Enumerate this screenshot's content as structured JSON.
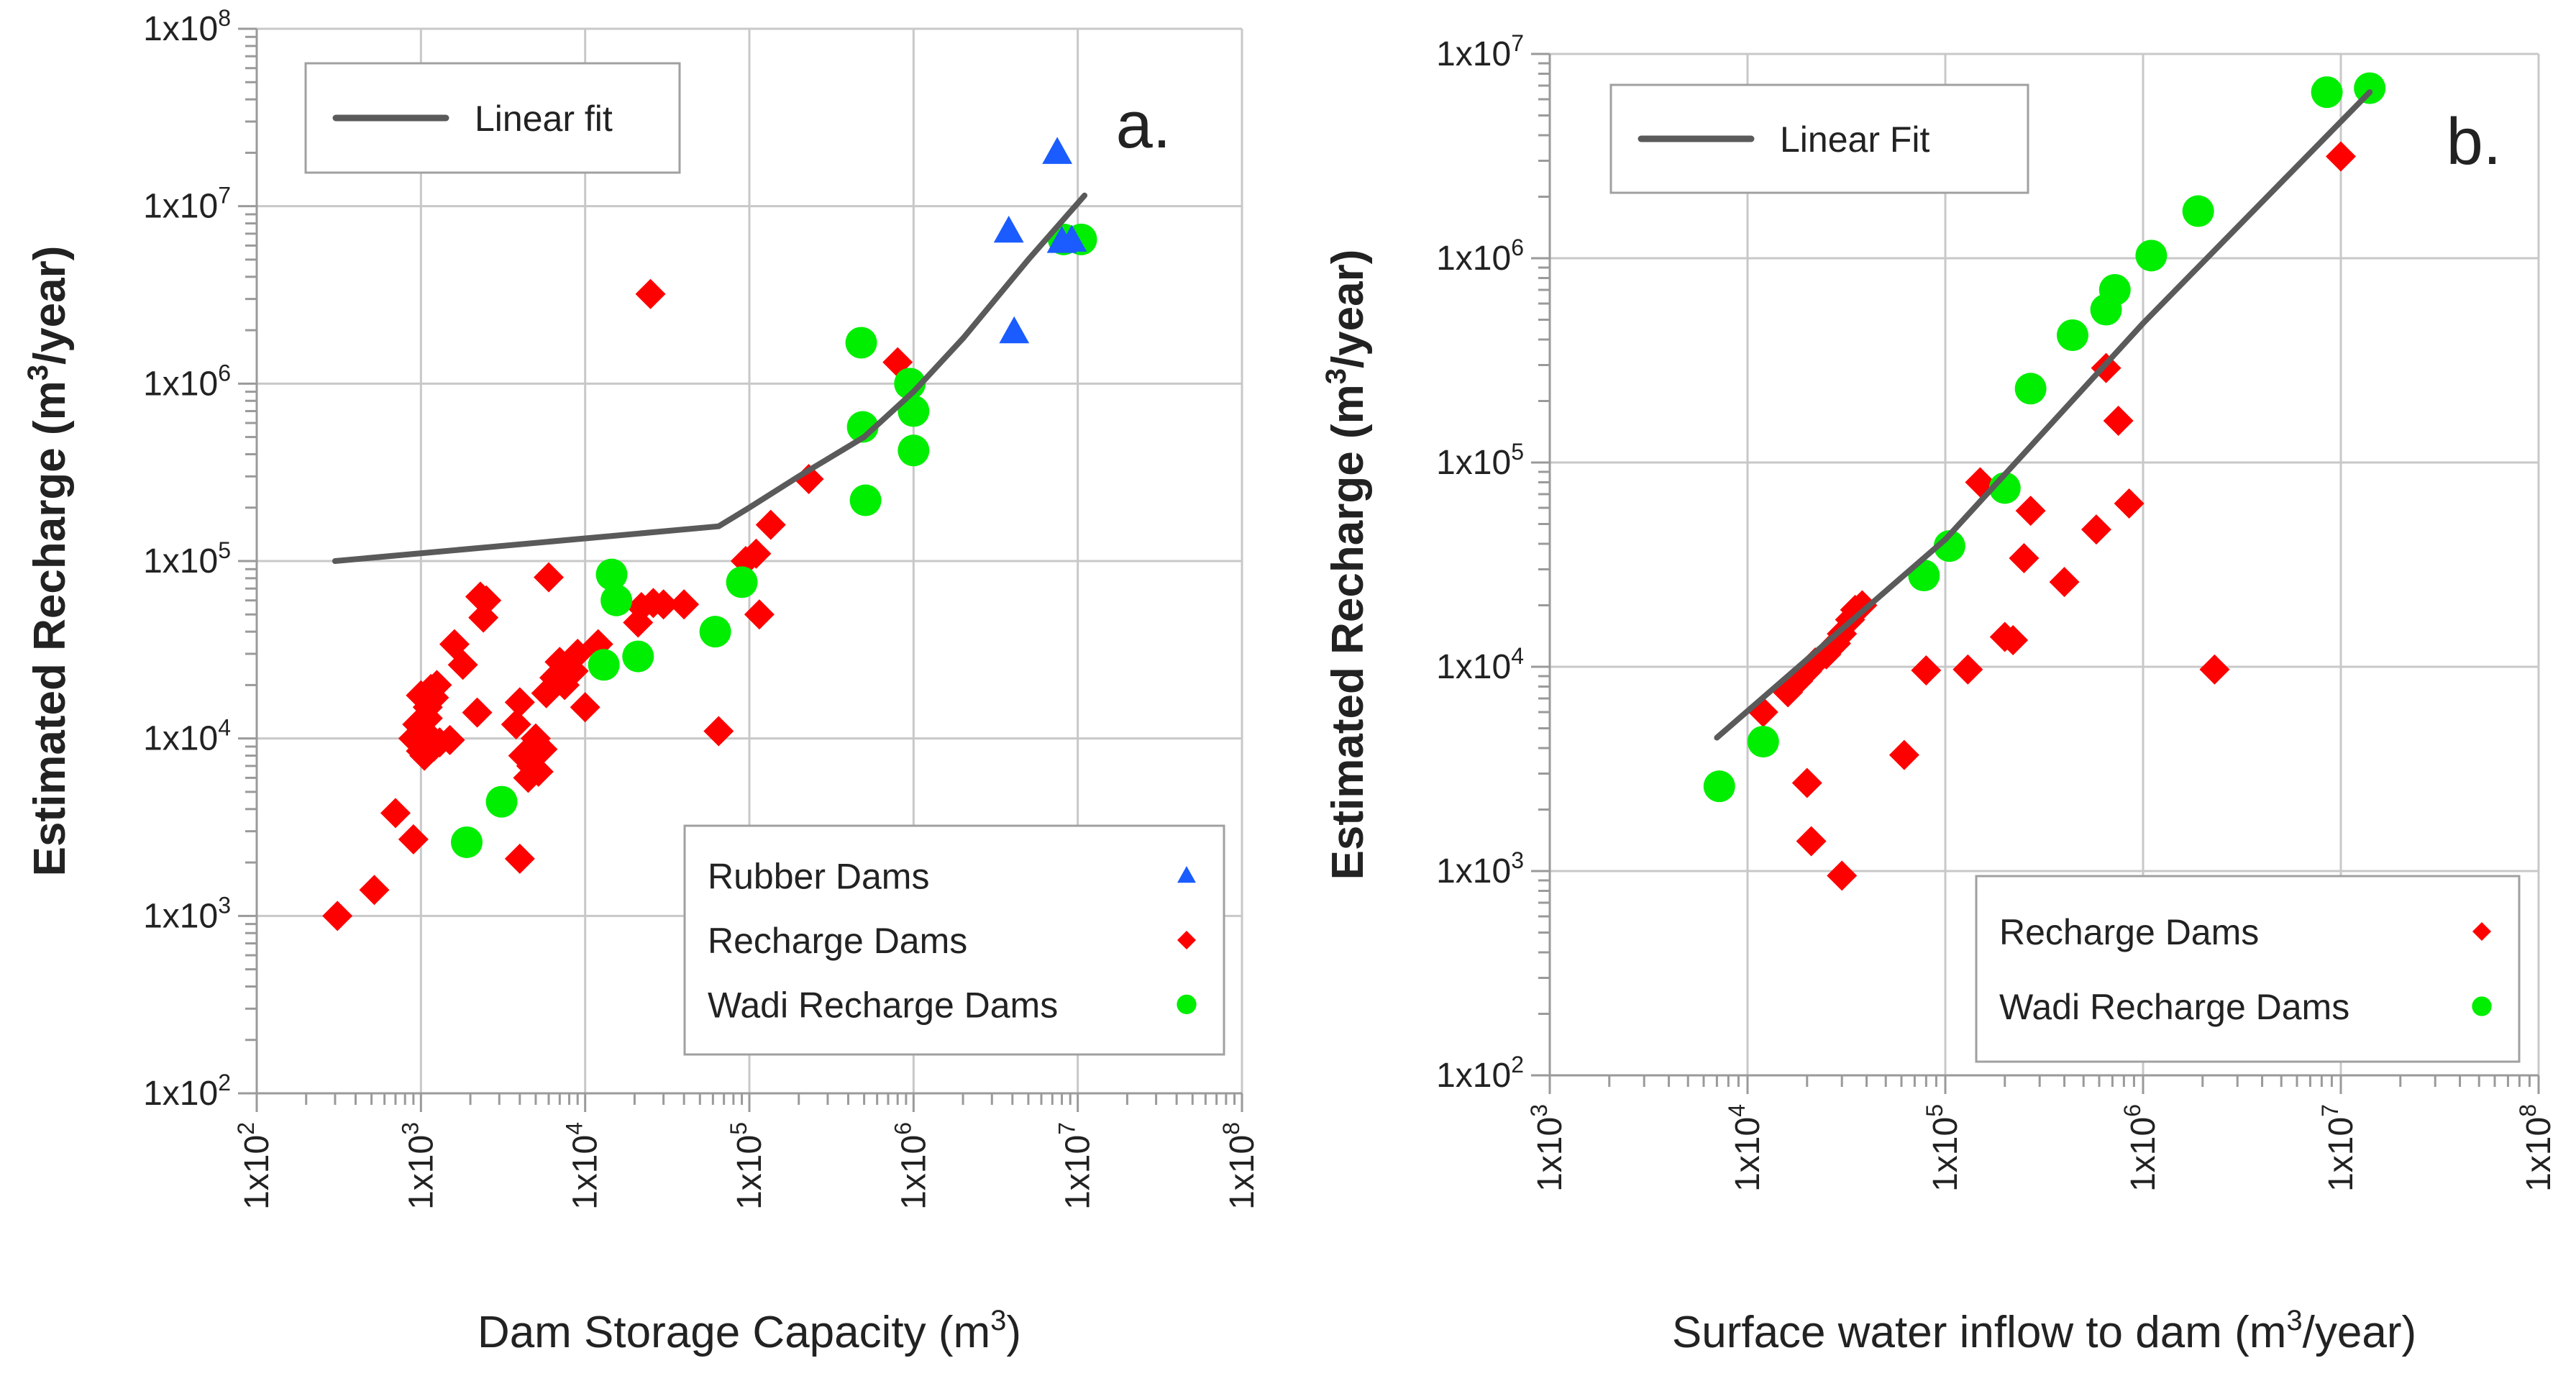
{
  "chart_data": [
    {
      "type": "scatter",
      "panel_label": "a.",
      "xlabel_text": "Dam Storage Capacity (m",
      "xlabel_sup": "3",
      "xlabel_tail": ")",
      "ylabel_text": "Estimated Recharge (m",
      "ylabel_sup": "3",
      "ylabel_tail": "/year)",
      "xscale": "log",
      "yscale": "log",
      "xlim_exp": [
        2,
        8
      ],
      "ylim_exp": [
        2,
        8
      ],
      "x_ticks": [
        {
          "base": "1x10",
          "exp": "2"
        },
        {
          "base": "1x10",
          "exp": "3"
        },
        {
          "base": "1x10",
          "exp": "4"
        },
        {
          "base": "1x10",
          "exp": "5"
        },
        {
          "base": "1x10",
          "exp": "6"
        },
        {
          "base": "1x10",
          "exp": "7"
        },
        {
          "base": "1x10",
          "exp": "8"
        }
      ],
      "y_ticks": [
        {
          "base": "1x10",
          "exp": "2"
        },
        {
          "base": "1x10",
          "exp": "3"
        },
        {
          "base": "1x10",
          "exp": "4"
        },
        {
          "base": "1x10",
          "exp": "5"
        },
        {
          "base": "1x10",
          "exp": "6"
        },
        {
          "base": "1x10",
          "exp": "7"
        },
        {
          "base": "1x10",
          "exp": "8"
        }
      ],
      "fit_legend": {
        "label": "Linear fit",
        "position": "top-left"
      },
      "legend_position": "bottom-right",
      "fit_line": {
        "name": "Linear fit",
        "color": "#5a5a5a",
        "x": [
          300,
          65000,
          100000,
          200000,
          500000,
          1000000,
          2000000,
          5000000,
          11000000
        ],
        "y": [
          100000,
          157000,
          200000,
          300000,
          500000,
          900000,
          1800000,
          5000000,
          11500000
        ]
      },
      "series": [
        {
          "name": "Rubber Dams",
          "marker": "triangle",
          "color": "#1a5cff",
          "x": [
            3800000,
            4100000,
            7500000,
            8000000,
            9200000
          ],
          "y": [
            7200000,
            1950000,
            20000000,
            6300000,
            6400000
          ]
        },
        {
          "name": "Recharge Dams",
          "marker": "diamond",
          "color": "#ff0000",
          "x": [
            310,
            520,
            700,
            900,
            950,
            1000,
            1050,
            1100,
            1150,
            1200,
            1250,
            1300,
            1000,
            1100,
            1200,
            900,
            1050,
            1500,
            1600,
            1800,
            2200,
            2300,
            2400,
            2500,
            4000,
            4200,
            4500,
            4700,
            5000,
            5200,
            5500,
            3800,
            4000,
            5800,
            6000,
            6500,
            7000,
            7500,
            8000,
            8500,
            9000,
            10000,
            12000,
            21000,
            22000,
            25000,
            26000,
            30000,
            40000,
            65000,
            95000,
            110000,
            115000,
            135000,
            230000,
            800000
          ],
          "y": [
            1000,
            1400,
            3800,
            2700,
            12000,
            8500,
            11000,
            15000,
            19000,
            17000,
            20000,
            9500,
            17500,
            13000,
            9000,
            10000,
            8000,
            9800,
            34000,
            26000,
            14000,
            63000,
            48000,
            60000,
            2100,
            8000,
            6000,
            7000,
            10000,
            6500,
            8700,
            12000,
            16000,
            18000,
            81000,
            22000,
            27000,
            20000,
            25000,
            24000,
            30000,
            15000,
            34000,
            45000,
            55000,
            3200000,
            58000,
            57000,
            57000,
            11000,
            100000,
            110000,
            50000,
            160000,
            290000,
            1320000
          ]
        },
        {
          "name": "Wadi Recharge Dams",
          "marker": "circle",
          "color": "#00ee00",
          "x": [
            1900,
            3100,
            13000,
            14500,
            15500,
            21000,
            62000,
            90000,
            480000,
            490000,
            510000,
            950000,
            1000000,
            1000000,
            8200000,
            10500000
          ],
          "y": [
            2600,
            4400,
            26000,
            84000,
            60000,
            29000,
            40000,
            76000,
            1700000,
            570000,
            220000,
            1000000,
            700000,
            420000,
            6500000,
            6500000
          ]
        }
      ]
    },
    {
      "type": "scatter",
      "panel_label": "b.",
      "xlabel_text": "Surface water inflow to dam (m",
      "xlabel_sup": "3",
      "xlabel_tail": "/year)",
      "ylabel_text": "Estimated Recharge (m",
      "ylabel_sup": "3",
      "ylabel_tail": "/year)",
      "xscale": "log",
      "yscale": "log",
      "xlim_exp": [
        3,
        8
      ],
      "ylim_exp": [
        2,
        7
      ],
      "x_ticks": [
        {
          "base": "1x10",
          "exp": "3"
        },
        {
          "base": "1x10",
          "exp": "4"
        },
        {
          "base": "1x10",
          "exp": "5"
        },
        {
          "base": "1x10",
          "exp": "6"
        },
        {
          "base": "1x10",
          "exp": "7"
        },
        {
          "base": "1x10",
          "exp": "8"
        }
      ],
      "y_ticks": [
        {
          "base": "1x10",
          "exp": "2"
        },
        {
          "base": "1x10",
          "exp": "3"
        },
        {
          "base": "1x10",
          "exp": "4"
        },
        {
          "base": "1x10",
          "exp": "5"
        },
        {
          "base": "1x10",
          "exp": "6"
        },
        {
          "base": "1x10",
          "exp": "7"
        }
      ],
      "fit_legend": {
        "label": "Linear Fit",
        "position": "top-left"
      },
      "legend_position": "bottom-right",
      "fit_line": {
        "name": "Linear Fit",
        "color": "#5a5a5a",
        "x": [
          7000,
          100000,
          1000000,
          14000000
        ],
        "y": [
          4500,
          42000,
          480000,
          6500000
        ]
      },
      "series": [
        {
          "name": "Recharge Dams",
          "marker": "diamond",
          "color": "#ff0000",
          "x": [
            12000,
            16000,
            18000,
            20000,
            22000,
            25000,
            28000,
            30000,
            33000,
            35000,
            38000,
            20000,
            21000,
            30000,
            62000,
            80000,
            130000,
            150000,
            200000,
            220000,
            250000,
            270000,
            400000,
            580000,
            650000,
            750000,
            850000,
            2300000,
            10000000
          ],
          "y": [
            6000,
            7500,
            8500,
            9500,
            10500,
            11500,
            13000,
            14500,
            17000,
            19000,
            20000,
            2700,
            1400,
            950,
            3700,
            9600,
            9700,
            80000,
            14000,
            13500,
            34000,
            58000,
            26000,
            47000,
            290000,
            160000,
            63000,
            9700,
            3150000
          ]
        },
        {
          "name": "Wadi Recharge Dams",
          "marker": "circle",
          "color": "#00ee00",
          "x": [
            7200,
            12000,
            78000,
            105000,
            200000,
            270000,
            440000,
            650000,
            720000,
            1100000,
            1900000,
            8500000,
            14000000
          ],
          "y": [
            2600,
            4300,
            28000,
            39000,
            75000,
            230000,
            420000,
            560000,
            700000,
            1030000,
            1700000,
            6500000,
            6800000
          ]
        }
      ]
    }
  ]
}
